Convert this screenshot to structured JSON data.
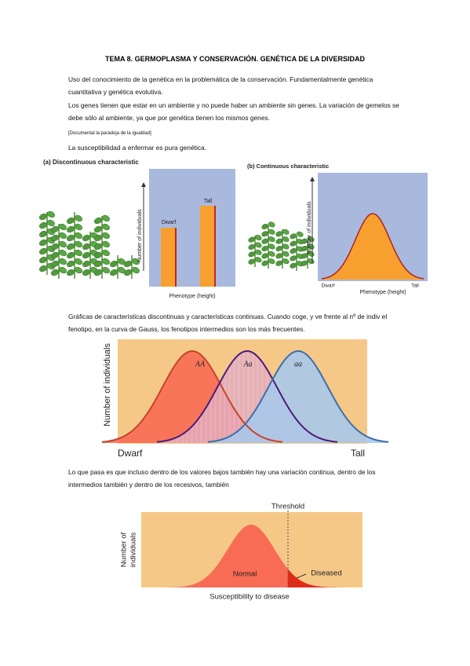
{
  "header": {
    "title": "TEMA 8. GERMOPLASMA Y CONSERVACIÓN. GENÉTICA DE LA DIVERSIDAD"
  },
  "paragraphs": [
    "Uso del conocimiento de la genética en la problemática de la conservación. Fundamentalmente genética cuantitativa y genética evolutiva.",
    "Los genes tienen que estar en un ambiente y no puede haber un ambiente sin genes. La variación de gemelos se debe sólo al ambiente, ya que por genética tienen los mismos genes.",
    "[Documental la paradoja de la igualdad]",
    "La susceptibilidad a enfermar es pura genética.",
    "Gráficas de características discontinuas y características continuas. Cuando coge, y ve frente al nº de indiv el fenotipo, en la curva de Gauss, los fenotipos intermedios son los más frecuentes.",
    "Lo que pasa es que incluso dentro de los valores bajos también hay una variación continua, dentro de los intermedios también y dentro de los recesivos, también"
  ],
  "figures": [
    {
      "label": "(a) Discontinuous characteristic",
      "y_label": "Number of individuals",
      "bars": [
        "Dwarf",
        "Tall"
      ],
      "x_label": "Phenotype (height)"
    },
    {
      "label": "(b) Continuous characteristic",
      "y_label": "Number of individuals",
      "x_start": "Dwarf",
      "x_end": "Tall",
      "x_label": "Phenotype (height)"
    },
    {
      "curves": [
        "AA",
        "Aa",
        "aa"
      ],
      "y_label": "Number of individuals",
      "x_start": "Dwarf",
      "x_end": "Tall"
    },
    {
      "threshold": "Threshold",
      "y_label": [
        "Number of",
        "individuals"
      ],
      "regions": [
        "Normal",
        "Diseased"
      ],
      "x_label": "Susceptibility to disease"
    }
  ]
}
